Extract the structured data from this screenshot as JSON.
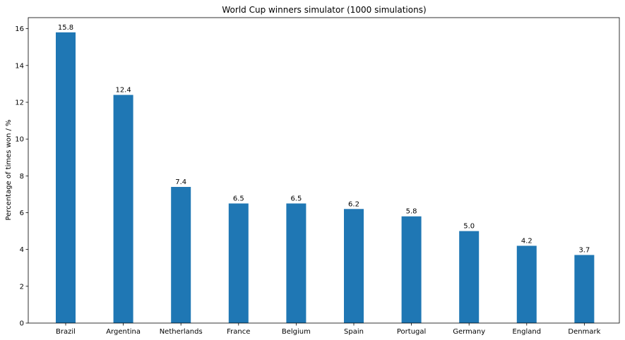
{
  "chart_data": {
    "type": "bar",
    "title": "World Cup winners simulator (1000 simulations)",
    "xlabel": "",
    "ylabel": "Percentage of times won / %",
    "categories": [
      "Brazil",
      "Argentina",
      "Netherlands",
      "France",
      "Belgium",
      "Spain",
      "Portugal",
      "Germany",
      "England",
      "Denmark"
    ],
    "values": [
      15.8,
      12.4,
      7.4,
      6.5,
      6.5,
      6.2,
      5.8,
      5.0,
      4.2,
      3.7
    ],
    "value_labels": [
      "15.8",
      "12.4",
      "7.4",
      "6.5",
      "6.5",
      "6.2",
      "5.8",
      "5.0",
      "4.2",
      "3.7"
    ],
    "ylim": [
      0,
      16.6
    ],
    "yticks": [
      0,
      2,
      4,
      6,
      8,
      10,
      12,
      14,
      16
    ],
    "grid": false,
    "legend": "none",
    "bar_color": "#1f77b4"
  }
}
